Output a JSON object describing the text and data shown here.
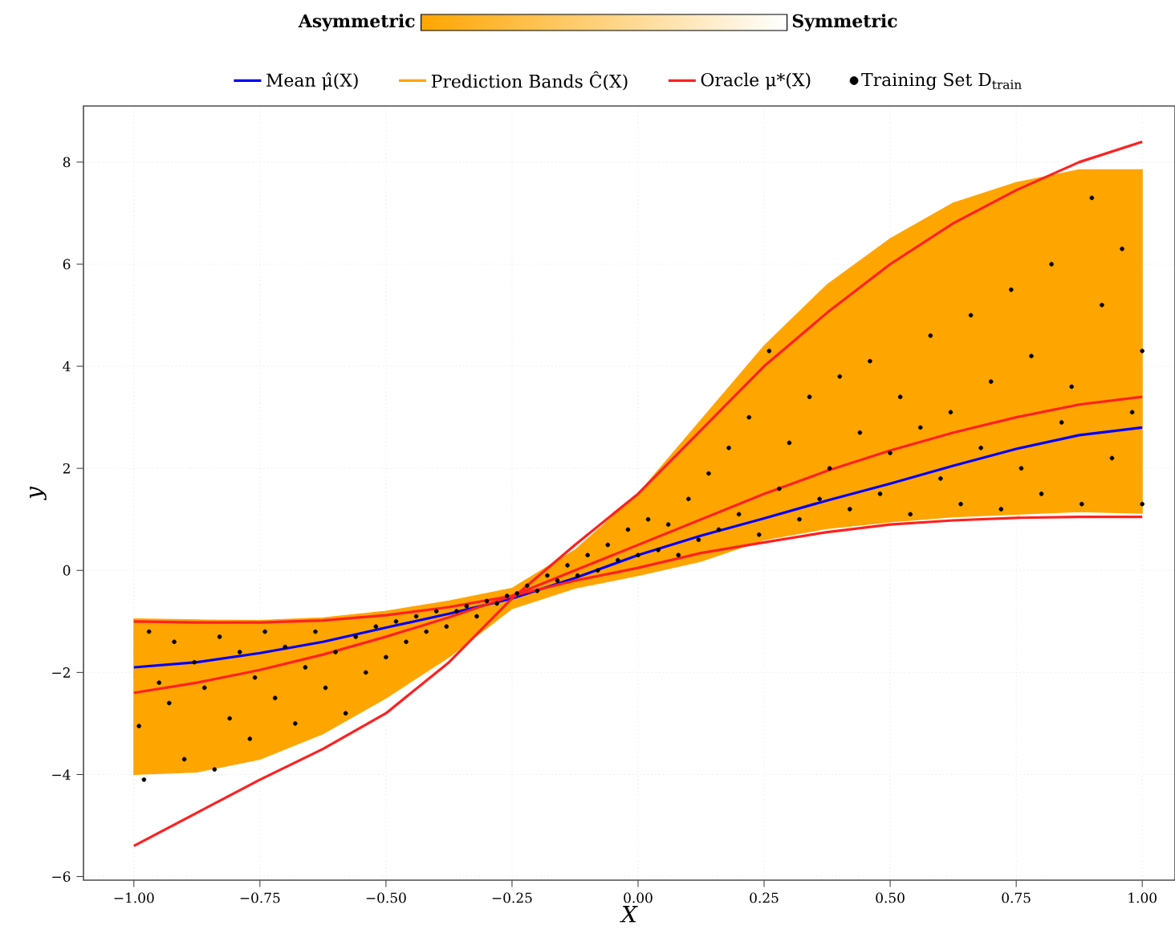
{
  "chart_data": {
    "type": "line",
    "xlabel": "X",
    "ylabel": "y",
    "annotations": [
      "Asymmetric",
      "Symmetric"
    ],
    "xlim": [
      -1.1,
      1.065
    ],
    "ylim": [
      -6.07,
      9.1
    ],
    "xticks": [
      {
        "value": -1,
        "label": "−1.00"
      },
      {
        "value": -0.75,
        "label": "−0.75"
      },
      {
        "value": -0.5,
        "label": "−0.50"
      },
      {
        "value": -0.25,
        "label": "−0.25"
      },
      {
        "value": 0,
        "label": "0.00"
      },
      {
        "value": 0.25,
        "label": "0.25"
      },
      {
        "value": 0.5,
        "label": "0.50"
      },
      {
        "value": 0.75,
        "label": "0.75"
      },
      {
        "value": 1,
        "label": "1.00"
      }
    ],
    "yticks": [
      {
        "value": -6,
        "label": "−6"
      },
      {
        "value": -4,
        "label": "−4"
      },
      {
        "value": -2,
        "label": "−2"
      },
      0,
      2,
      4,
      6,
      8
    ],
    "grid": true,
    "legend": "top",
    "line_style": "solid",
    "x": [
      -1,
      -0.875,
      -0.75,
      -0.625,
      -0.5,
      -0.375,
      -0.25,
      -0.125,
      0,
      0.125,
      0.25,
      0.375,
      0.5,
      0.625,
      0.75,
      0.875,
      1
    ],
    "series": [
      {
        "name": "Mean μ̂(X)",
        "type": "line",
        "color": "#0000ff",
        "values": [
          -1.9,
          -1.8,
          -1.62,
          -1.4,
          -1.12,
          -0.85,
          -0.55,
          -0.15,
          0.3,
          0.68,
          1.02,
          1.37,
          1.7,
          2.05,
          2.38,
          2.65,
          2.8
        ]
      },
      {
        "name": "Prediction Bands Ĉ(X)",
        "type": "area",
        "color": "#ffa500",
        "values": [
          null,
          null,
          null,
          null,
          null,
          null,
          null,
          null,
          null,
          null,
          null,
          null,
          null,
          null,
          null,
          null,
          null
        ],
        "lower": [
          -4.0,
          -3.95,
          -3.7,
          -3.2,
          -2.5,
          -1.7,
          -0.75,
          -0.35,
          -0.1,
          0.18,
          0.6,
          0.82,
          0.95,
          1.05,
          1.1,
          1.15,
          1.12
        ],
        "upper": [
          -0.95,
          -0.97,
          -0.98,
          -0.93,
          -0.8,
          -0.6,
          -0.35,
          0.4,
          1.5,
          2.95,
          4.4,
          5.6,
          6.5,
          7.2,
          7.6,
          7.85,
          7.85
        ]
      },
      {
        "name": "Oracle μ*(X)",
        "type": "line",
        "color": "#ff2020",
        "values": [
          -2.4,
          -2.2,
          -1.95,
          -1.65,
          -1.3,
          -0.92,
          -0.5,
          0.0,
          0.5,
          1.0,
          1.5,
          1.95,
          2.35,
          2.7,
          3.0,
          3.25,
          3.4
        ]
      },
      {
        "type": "line",
        "color": "#ff2020",
        "values": [
          -5.4,
          -4.75,
          -4.1,
          -3.5,
          -2.8,
          -1.8,
          -0.55,
          0.5,
          1.5,
          2.75,
          4.0,
          5.05,
          6.0,
          6.8,
          7.45,
          8.0,
          8.4
        ]
      },
      {
        "type": "line",
        "color": "#ff2020",
        "values": [
          -1.0,
          -1.02,
          -1.02,
          -0.98,
          -0.88,
          -0.72,
          -0.5,
          -0.2,
          0.05,
          0.34,
          0.55,
          0.75,
          0.9,
          0.98,
          1.03,
          1.05,
          1.05
        ]
      },
      {
        "name": "Training Set D$_{train}$",
        "type": "scatter",
        "color": "#000000",
        "marker": "circle",
        "x": [
          -0.98,
          -0.99,
          -0.97,
          -0.95,
          -0.93,
          -0.92,
          -0.9,
          -0.88,
          -0.86,
          -0.84,
          -0.83,
          -0.81,
          -0.79,
          -0.77,
          -0.76,
          -0.74,
          -0.72,
          -0.7,
          -0.68,
          -0.66,
          -0.64,
          -0.62,
          -0.6,
          -0.58,
          -0.56,
          -0.54,
          -0.52,
          -0.5,
          -0.48,
          -0.46,
          -0.44,
          -0.42,
          -0.4,
          -0.38,
          -0.36,
          -0.34,
          -0.32,
          -0.3,
          -0.28,
          -0.26,
          -0.24,
          -0.22,
          -0.2,
          -0.18,
          -0.16,
          -0.14,
          -0.12,
          -0.1,
          -0.08,
          -0.06,
          -0.04,
          -0.02,
          0.0,
          0.02,
          0.04,
          0.06,
          0.08,
          0.1,
          0.12,
          0.14,
          0.16,
          0.18,
          0.2,
          0.22,
          0.24,
          0.26,
          0.28,
          0.3,
          0.32,
          0.34,
          0.36,
          0.38,
          0.4,
          0.42,
          0.44,
          0.46,
          0.48,
          0.5,
          0.52,
          0.54,
          0.56,
          0.58,
          0.6,
          0.62,
          0.64,
          0.66,
          0.68,
          0.7,
          0.72,
          0.74,
          0.76,
          0.78,
          0.8,
          0.82,
          0.84,
          0.86,
          0.88,
          0.9,
          0.92,
          0.94,
          0.96,
          0.98,
          1.0,
          1.0
        ],
        "values": [
          -4.1,
          -3.05,
          -1.2,
          -2.2,
          -2.6,
          -1.4,
          -3.7,
          -1.8,
          -2.3,
          -3.9,
          -1.3,
          -2.9,
          -1.6,
          -3.3,
          -2.1,
          -1.2,
          -2.5,
          -1.5,
          -3.0,
          -1.9,
          -1.2,
          -2.3,
          -1.6,
          -2.8,
          -1.3,
          -2.0,
          -1.1,
          -1.7,
          -1.0,
          -1.4,
          -0.9,
          -1.2,
          -0.8,
          -1.1,
          -0.8,
          -0.7,
          -0.9,
          -0.6,
          -0.65,
          -0.5,
          -0.45,
          -0.3,
          -0.4,
          -0.1,
          -0.2,
          0.1,
          -0.1,
          0.3,
          0.0,
          0.5,
          0.2,
          0.8,
          0.3,
          1.0,
          0.4,
          0.9,
          0.3,
          1.4,
          0.6,
          1.9,
          0.8,
          2.4,
          1.1,
          3.0,
          0.7,
          4.3,
          1.6,
          2.5,
          1.0,
          3.4,
          1.4,
          2.0,
          3.8,
          1.2,
          2.7,
          4.1,
          1.5,
          2.3,
          3.4,
          1.1,
          2.8,
          4.6,
          1.8,
          3.1,
          1.3,
          5.0,
          2.4,
          3.7,
          1.2,
          5.5,
          2.0,
          4.2,
          1.5,
          6.0,
          2.9,
          3.6,
          1.3,
          7.3,
          5.2,
          2.2,
          6.3,
          3.1,
          4.3,
          1.3
        ]
      }
    ]
  }
}
